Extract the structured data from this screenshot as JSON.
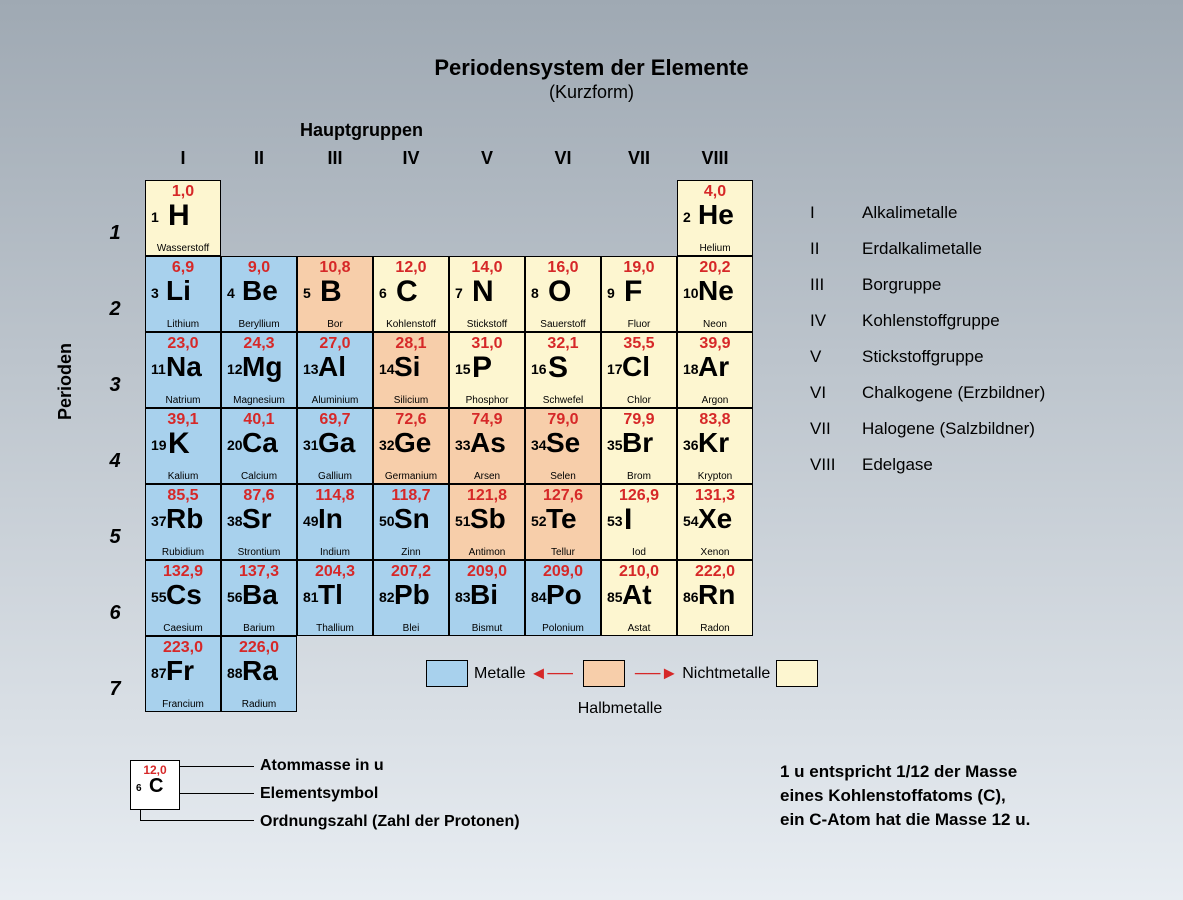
{
  "title": "Periodensystem der Elemente",
  "subtitle": "(Kurzform)",
  "hauptgruppen_label": "Hauptgruppen",
  "perioden_label": "Perioden",
  "group_headers": [
    "I",
    "II",
    "III",
    "IV",
    "V",
    "VI",
    "VII",
    "VIII"
  ],
  "period_numbers": [
    "1",
    "2",
    "3",
    "4",
    "5",
    "6",
    "7"
  ],
  "colors": {
    "metal": "#a8d1ed",
    "halfmetal": "#f7ceaa",
    "nonmetal": "#fdf6d0",
    "mass": "#d62828",
    "text": "#000000"
  },
  "elements": [
    [
      {
        "z": 1,
        "sym": "H",
        "mass": "1,0",
        "name": "Wasserstoff",
        "cat": "nonmetal"
      },
      null,
      null,
      null,
      null,
      null,
      null,
      {
        "z": 2,
        "sym": "He",
        "mass": "4,0",
        "name": "Helium",
        "cat": "nonmetal"
      }
    ],
    [
      {
        "z": 3,
        "sym": "Li",
        "mass": "6,9",
        "name": "Lithium",
        "cat": "metal"
      },
      {
        "z": 4,
        "sym": "Be",
        "mass": "9,0",
        "name": "Beryllium",
        "cat": "metal"
      },
      {
        "z": 5,
        "sym": "B",
        "mass": "10,8",
        "name": "Bor",
        "cat": "halfmetal"
      },
      {
        "z": 6,
        "sym": "C",
        "mass": "12,0",
        "name": "Kohlenstoff",
        "cat": "nonmetal"
      },
      {
        "z": 7,
        "sym": "N",
        "mass": "14,0",
        "name": "Stickstoff",
        "cat": "nonmetal"
      },
      {
        "z": 8,
        "sym": "O",
        "mass": "16,0",
        "name": "Sauerstoff",
        "cat": "nonmetal"
      },
      {
        "z": 9,
        "sym": "F",
        "mass": "19,0",
        "name": "Fluor",
        "cat": "nonmetal"
      },
      {
        "z": 10,
        "sym": "Ne",
        "mass": "20,2",
        "name": "Neon",
        "cat": "nonmetal"
      }
    ],
    [
      {
        "z": 11,
        "sym": "Na",
        "mass": "23,0",
        "name": "Natrium",
        "cat": "metal"
      },
      {
        "z": 12,
        "sym": "Mg",
        "mass": "24,3",
        "name": "Magnesium",
        "cat": "metal"
      },
      {
        "z": 13,
        "sym": "Al",
        "mass": "27,0",
        "name": "Aluminium",
        "cat": "metal"
      },
      {
        "z": 14,
        "sym": "Si",
        "mass": "28,1",
        "name": "Silicium",
        "cat": "halfmetal"
      },
      {
        "z": 15,
        "sym": "P",
        "mass": "31,0",
        "name": "Phosphor",
        "cat": "nonmetal"
      },
      {
        "z": 16,
        "sym": "S",
        "mass": "32,1",
        "name": "Schwefel",
        "cat": "nonmetal"
      },
      {
        "z": 17,
        "sym": "Cl",
        "mass": "35,5",
        "name": "Chlor",
        "cat": "nonmetal"
      },
      {
        "z": 18,
        "sym": "Ar",
        "mass": "39,9",
        "name": "Argon",
        "cat": "nonmetal"
      }
    ],
    [
      {
        "z": 19,
        "sym": "K",
        "mass": "39,1",
        "name": "Kalium",
        "cat": "metal"
      },
      {
        "z": 20,
        "sym": "Ca",
        "mass": "40,1",
        "name": "Calcium",
        "cat": "metal"
      },
      {
        "z": 31,
        "sym": "Ga",
        "mass": "69,7",
        "name": "Gallium",
        "cat": "metal"
      },
      {
        "z": 32,
        "sym": "Ge",
        "mass": "72,6",
        "name": "Germanium",
        "cat": "halfmetal"
      },
      {
        "z": 33,
        "sym": "As",
        "mass": "74,9",
        "name": "Arsen",
        "cat": "halfmetal"
      },
      {
        "z": 34,
        "sym": "Se",
        "mass": "79,0",
        "name": "Selen",
        "cat": "halfmetal"
      },
      {
        "z": 35,
        "sym": "Br",
        "mass": "79,9",
        "name": "Brom",
        "cat": "nonmetal"
      },
      {
        "z": 36,
        "sym": "Kr",
        "mass": "83,8",
        "name": "Krypton",
        "cat": "nonmetal"
      }
    ],
    [
      {
        "z": 37,
        "sym": "Rb",
        "mass": "85,5",
        "name": "Rubidium",
        "cat": "metal"
      },
      {
        "z": 38,
        "sym": "Sr",
        "mass": "87,6",
        "name": "Strontium",
        "cat": "metal"
      },
      {
        "z": 49,
        "sym": "In",
        "mass": "114,8",
        "name": "Indium",
        "cat": "metal"
      },
      {
        "z": 50,
        "sym": "Sn",
        "mass": "118,7",
        "name": "Zinn",
        "cat": "metal"
      },
      {
        "z": 51,
        "sym": "Sb",
        "mass": "121,8",
        "name": "Antimon",
        "cat": "halfmetal"
      },
      {
        "z": 52,
        "sym": "Te",
        "mass": "127,6",
        "name": "Tellur",
        "cat": "halfmetal"
      },
      {
        "z": 53,
        "sym": "I",
        "mass": "126,9",
        "name": "Iod",
        "cat": "nonmetal"
      },
      {
        "z": 54,
        "sym": "Xe",
        "mass": "131,3",
        "name": "Xenon",
        "cat": "nonmetal"
      }
    ],
    [
      {
        "z": 55,
        "sym": "Cs",
        "mass": "132,9",
        "name": "Caesium",
        "cat": "metal"
      },
      {
        "z": 56,
        "sym": "Ba",
        "mass": "137,3",
        "name": "Barium",
        "cat": "metal"
      },
      {
        "z": 81,
        "sym": "Tl",
        "mass": "204,3",
        "name": "Thallium",
        "cat": "metal"
      },
      {
        "z": 82,
        "sym": "Pb",
        "mass": "207,2",
        "name": "Blei",
        "cat": "metal"
      },
      {
        "z": 83,
        "sym": "Bi",
        "mass": "209,0",
        "name": "Bismut",
        "cat": "metal"
      },
      {
        "z": 84,
        "sym": "Po",
        "mass": "209,0",
        "name": "Polonium",
        "cat": "metal"
      },
      {
        "z": 85,
        "sym": "At",
        "mass": "210,0",
        "name": "Astat",
        "cat": "nonmetal"
      },
      {
        "z": 86,
        "sym": "Rn",
        "mass": "222,0",
        "name": "Radon",
        "cat": "nonmetal"
      }
    ],
    [
      {
        "z": 87,
        "sym": "Fr",
        "mass": "223,0",
        "name": "Francium",
        "cat": "metal"
      },
      {
        "z": 88,
        "sym": "Ra",
        "mass": "226,0",
        "name": "Radium",
        "cat": "metal"
      },
      null,
      null,
      null,
      null,
      null,
      null
    ]
  ],
  "legend_groups": [
    {
      "num": "I",
      "label": "Alkalimetalle"
    },
    {
      "num": "II",
      "label": "Erdalkalimetalle"
    },
    {
      "num": "III",
      "label": "Borgruppe"
    },
    {
      "num": "IV",
      "label": "Kohlenstoffgruppe"
    },
    {
      "num": "V",
      "label": "Stickstoffgruppe"
    },
    {
      "num": "VI",
      "label": "Chalkogene (Erzbildner)"
    },
    {
      "num": "VII",
      "label": "Halogene (Salzbildner)"
    },
    {
      "num": "VIII",
      "label": "Edelgase"
    }
  ],
  "legend_cat": {
    "metal": "Metalle",
    "nonmetal": "Nichtmetalle",
    "half": "Halbmetalle"
  },
  "key": {
    "mass": "12,0",
    "num": "6",
    "sym": "C",
    "l1": "Atommasse in u",
    "l2": "Elementsymbol",
    "l3": "Ordnungszahl (Zahl der Protonen)"
  },
  "footnote": "1 u entspricht 1/12 der Masse\neines Kohlenstoffatoms (C),\nein C-Atom hat die Masse 12 u."
}
